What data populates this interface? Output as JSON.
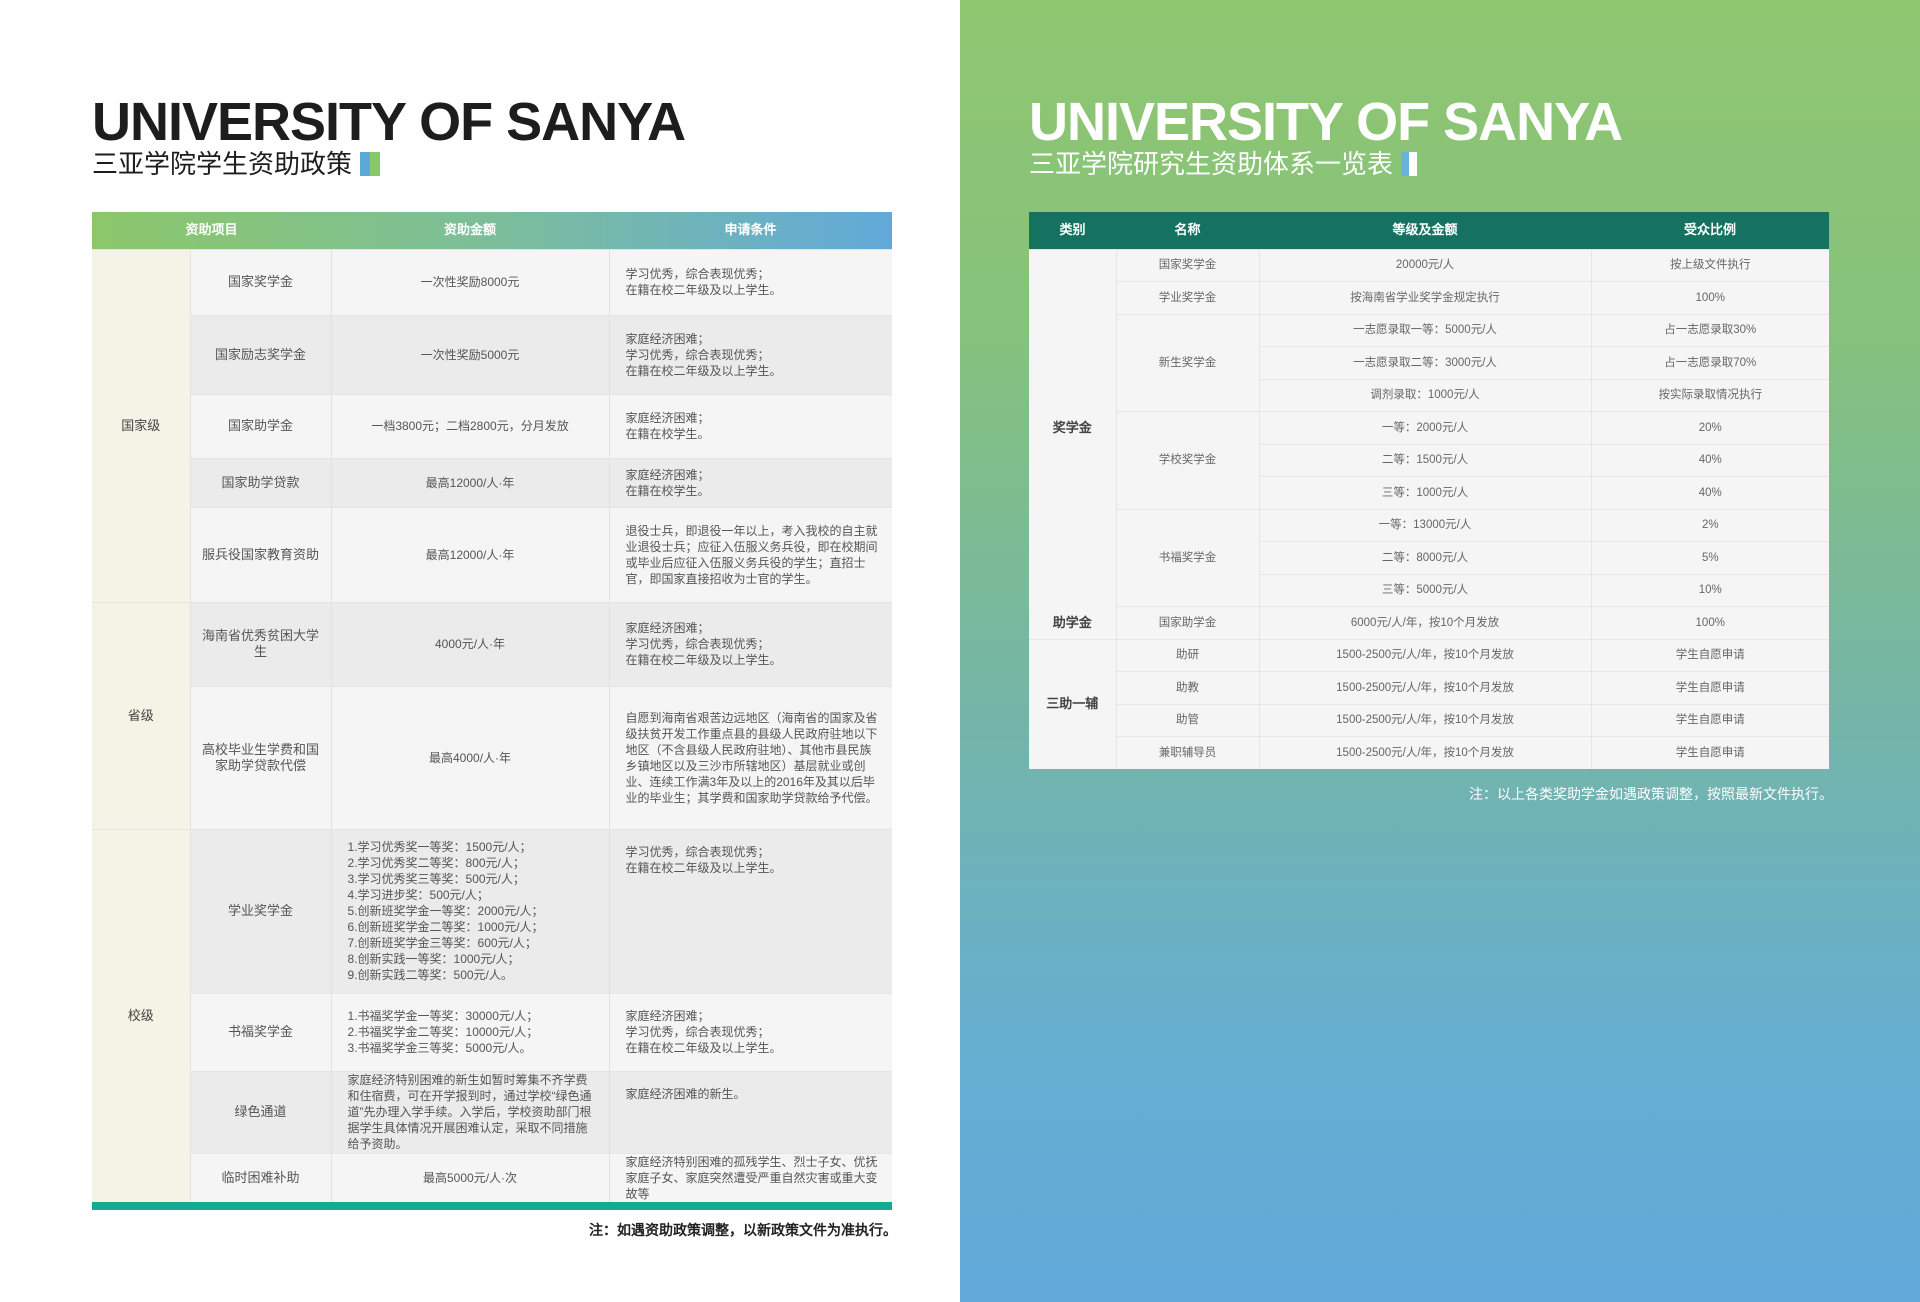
{
  "left": {
    "title": "UNIVERSITY OF SANYA",
    "subtitle": "三亚学院学生资助政策",
    "headers": [
      "资助项目",
      "资助金额",
      "申请条件"
    ],
    "groups": [
      {
        "level": "国家级",
        "rows": [
          {
            "name": "国家奖学金",
            "amount": "一次性奖励8000元",
            "condition": "学习优秀，综合表现优秀；\n在籍在校二年级及以上学生。"
          },
          {
            "name": "国家励志奖学金",
            "amount": "一次性奖励5000元",
            "condition": "家庭经济困难；\n学习优秀，综合表现优秀；\n在籍在校二年级及以上学生。"
          },
          {
            "name": "国家助学金",
            "amount": "一档3800元；二档2800元，分月发放",
            "condition": "家庭经济困难；\n在籍在校学生。"
          },
          {
            "name": "国家助学贷款",
            "amount": "最高12000/人·年",
            "condition": "家庭经济困难；\n在籍在校学生。"
          },
          {
            "name": "服兵役国家教育资助",
            "amount": "最高12000/人·年",
            "condition": "退役士兵，即退役一年以上，考入我校的自主就业退役士兵；应征入伍服义务兵役，即在校期间或毕业后应征入伍服义务兵役的学生；直招士官，即国家直接招收为士官的学生。"
          }
        ]
      },
      {
        "level": "省级",
        "rows": [
          {
            "name": "海南省优秀贫困大学生",
            "amount": "4000元/人·年",
            "condition": "家庭经济困难；\n学习优秀，综合表现优秀；\n在籍在校二年级及以上学生。"
          },
          {
            "name": "高校毕业生学费和国家助学贷款代偿",
            "amount": "最高4000/人·年",
            "condition": "自愿到海南省艰苦边远地区（海南省的国家及省级扶贫开发工作重点县的县级人民政府驻地以下地区（不含县级人民政府驻地）、其他市县民族乡镇地区以及三沙市所辖地区）基层就业或创业、连续工作满3年及以上的2016年及其以后毕业的毕业生；其学费和国家助学贷款给予代偿。"
          }
        ]
      },
      {
        "level": "校级",
        "rows": [
          {
            "name": "学业奖学金",
            "amount": "1.学习优秀奖一等奖：1500元/人；\n2.学习优秀奖二等奖：800元/人；\n3.学习优秀奖三等奖：500元/人；\n4.学习进步奖：500元/人；\n5.创新班奖学金一等奖：2000元/人；\n6.创新班奖学金二等奖：1000元/人；\n7.创新班奖学金三等奖：600元/人；\n8.创新实践一等奖：1000元/人；\n9.创新实践二等奖：500元/人。",
            "condition": "学习优秀，综合表现优秀；\n在籍在校二年级及以上学生。"
          },
          {
            "name": "书福奖学金",
            "amount": "1.书福奖学金一等奖：30000元/人；\n2.书福奖学金二等奖：10000元/人；\n3.书福奖学金三等奖：5000元/人。",
            "condition": "家庭经济困难；\n学习优秀，综合表现优秀；\n在籍在校二年级及以上学生。"
          },
          {
            "name": "绿色通道",
            "amount": "家庭经济特别困难的新生如暂时筹集不齐学费和住宿费，可在开学报到时，通过学校“绿色通道”先办理入学手续。入学后，学校资助部门根据学生具体情况开展困难认定，采取不同措施给予资助。",
            "condition": "家庭经济困难的新生。"
          },
          {
            "name": "临时困难补助",
            "amount": "最高5000元/人·次",
            "condition": "家庭经济特别困难的孤残学生、烈士子女、优抚家庭子女、家庭突然遭受严重自然灾害或重大变故等"
          }
        ]
      }
    ],
    "note": "注：如遇资助政策调整，以新政策文件为准执行。"
  },
  "right": {
    "title": "UNIVERSITY OF SANYA",
    "subtitle": "三亚学院研究生资助体系一览表",
    "headers": [
      "类别",
      "名称",
      "等级及金额",
      "受众比例"
    ],
    "categories": [
      {
        "category": "奖学金",
        "names": [
          {
            "name": "国家奖学金",
            "items": [
              {
                "amount": "20000元/人",
                "ratio": "按上级文件执行"
              }
            ]
          },
          {
            "name": "学业奖学金",
            "items": [
              {
                "amount": "按海南省学业奖学金规定执行",
                "ratio": "100%"
              }
            ]
          },
          {
            "name": "新生奖学金",
            "items": [
              {
                "amount": "一志愿录取一等：5000元/人",
                "ratio": "占一志愿录取30%"
              },
              {
                "amount": "一志愿录取二等：3000元/人",
                "ratio": "占一志愿录取70%"
              },
              {
                "amount": "调剂录取：1000元/人",
                "ratio": "按实际录取情况执行"
              }
            ]
          },
          {
            "name": "学校奖学金",
            "items": [
              {
                "amount": "一等：2000元/人",
                "ratio": "20%"
              },
              {
                "amount": "二等：1500元/人",
                "ratio": "40%"
              },
              {
                "amount": "三等：1000元/人",
                "ratio": "40%"
              }
            ]
          },
          {
            "name": "书福奖学金",
            "items": [
              {
                "amount": "一等：13000元/人",
                "ratio": "2%"
              },
              {
                "amount": "二等：8000元/人",
                "ratio": "5%"
              },
              {
                "amount": "三等：5000元/人",
                "ratio": "10%"
              }
            ]
          }
        ]
      },
      {
        "category": "助学金",
        "names": [
          {
            "name": "国家助学金",
            "items": [
              {
                "amount": "6000元/人/年，按10个月发放",
                "ratio": "100%"
              }
            ]
          }
        ]
      },
      {
        "category": "三助一辅",
        "names": [
          {
            "name": "助研",
            "items": [
              {
                "amount": "1500-2500元/人/年，按10个月发放",
                "ratio": "学生自愿申请"
              }
            ]
          },
          {
            "name": "助教",
            "items": [
              {
                "amount": "1500-2500元/人/年，按10个月发放",
                "ratio": "学生自愿申请"
              }
            ]
          },
          {
            "name": "助管",
            "items": [
              {
                "amount": "1500-2500元/人/年，按10个月发放",
                "ratio": "学生自愿申请"
              }
            ]
          },
          {
            "name": "兼职辅导员",
            "items": [
              {
                "amount": "1500-2500元/人/年，按10个月发放",
                "ratio": "学生自愿申请"
              }
            ]
          }
        ]
      }
    ],
    "note": "注：以上各类奖助学金如遇政策调整，按照最新文件执行。"
  },
  "colors": {
    "left_header_start": "#8cc76a",
    "left_header_end": "#62a9da",
    "right_header": "#157260",
    "bottom_bar": "#12ab92",
    "level_bg": "#f5f3e6"
  }
}
